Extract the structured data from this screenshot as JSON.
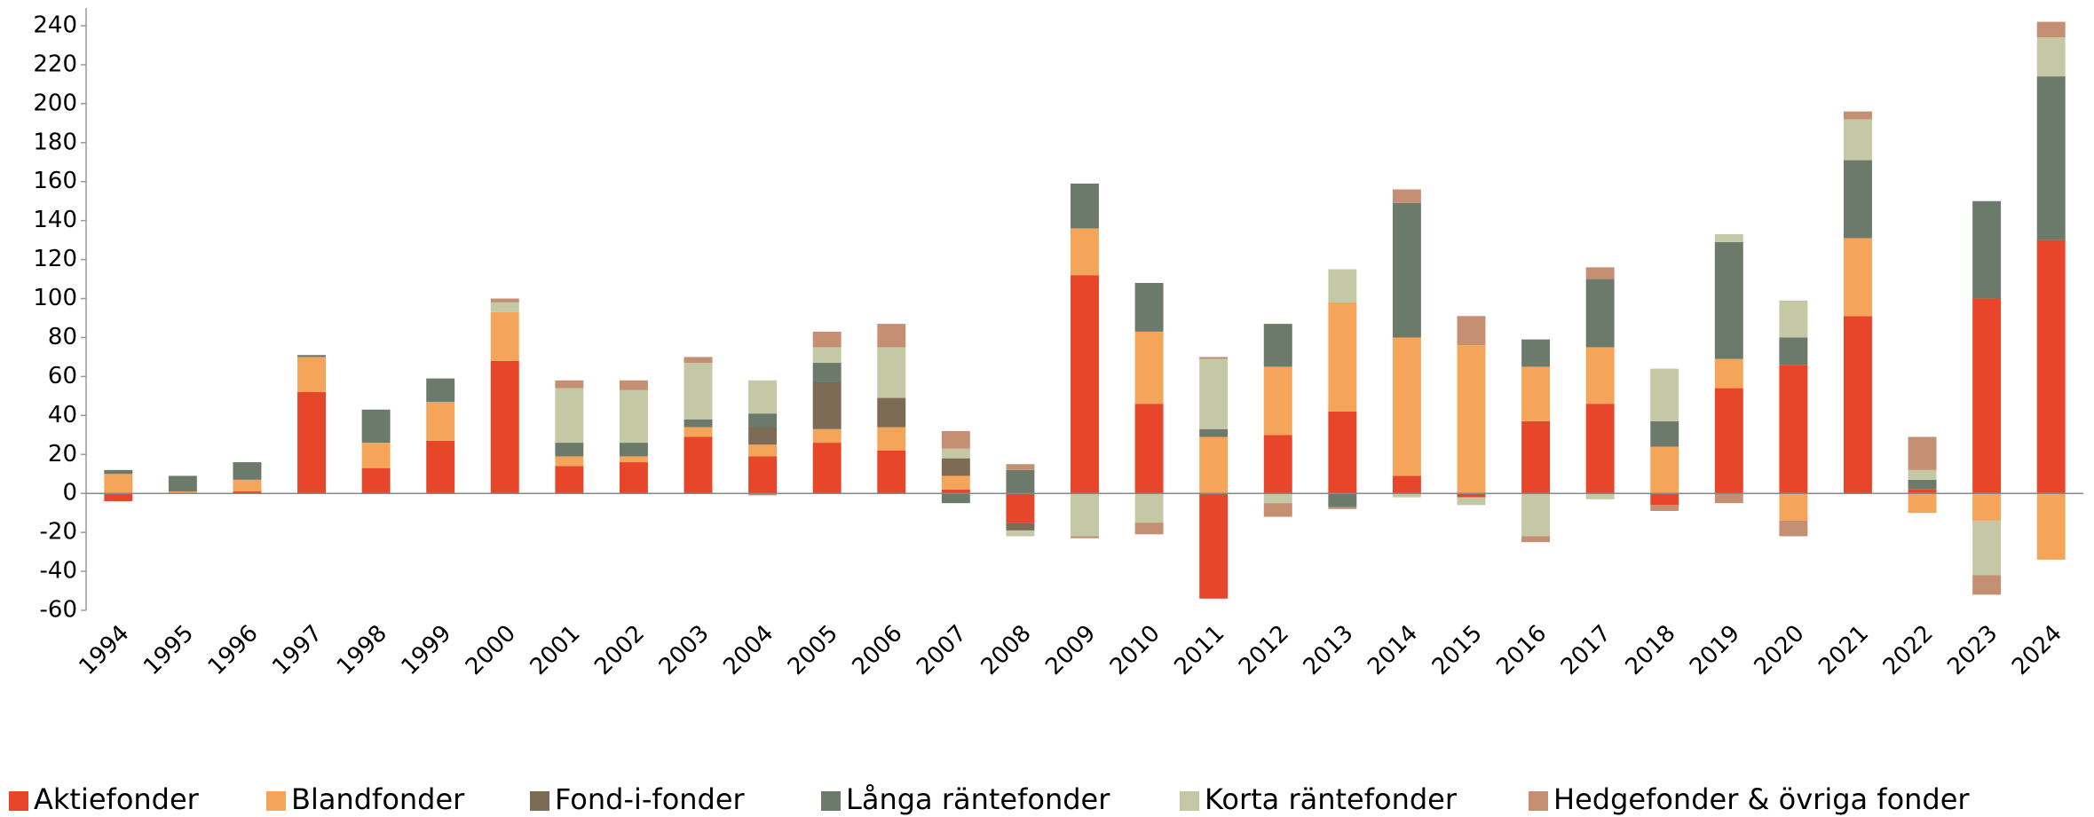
{
  "chart_data": {
    "type": "stacked_bar",
    "categories": [
      "1994",
      "1995",
      "1996",
      "1997",
      "1998",
      "1999",
      "2000",
      "2001",
      "2002",
      "2003",
      "2004",
      "2005",
      "2006",
      "2007",
      "2008",
      "2009",
      "2010",
      "2011",
      "2012",
      "2013",
      "2014",
      "2015",
      "2016",
      "2017",
      "2018",
      "2019",
      "2020",
      "2021",
      "2022",
      "2023",
      "2024"
    ],
    "series": [
      {
        "name": "Aktiefonder",
        "color": "#e8462a",
        "values": [
          -4,
          0,
          1,
          52,
          13,
          27,
          68,
          14,
          16,
          29,
          19,
          26,
          22,
          2,
          -15,
          112,
          46,
          -54,
          30,
          42,
          9,
          -2,
          37,
          46,
          -6,
          54,
          66,
          91,
          2,
          100,
          130
        ]
      },
      {
        "name": "Blandfonder",
        "color": "#f5a55a",
        "values": [
          10,
          1,
          6,
          18,
          13,
          20,
          25,
          5,
          3,
          5,
          6,
          7,
          12,
          7,
          0,
          24,
          37,
          29,
          35,
          56,
          71,
          76,
          28,
          29,
          24,
          15,
          -14,
          40,
          -10,
          -14,
          -34
        ]
      },
      {
        "name": "Fond-i-fonder",
        "color": "#7d6b55",
        "values": [
          0,
          0,
          0,
          0,
          0,
          0,
          0,
          0,
          0,
          0,
          9,
          24,
          15,
          9,
          -4,
          0,
          0,
          0,
          0,
          0,
          0,
          0,
          0,
          0,
          0,
          0,
          0,
          0,
          0,
          0,
          0
        ]
      },
      {
        "name": "Långa räntefonder",
        "color": "#6b7a6b",
        "values": [
          2,
          8,
          9,
          1,
          17,
          12,
          0,
          7,
          7,
          4,
          7,
          10,
          0,
          -5,
          12,
          23,
          25,
          4,
          22,
          -7,
          69,
          0,
          14,
          35,
          13,
          60,
          14,
          40,
          5,
          50,
          84
        ]
      },
      {
        "name": "Korta räntefonder",
        "color": "#c5c8a5",
        "values": [
          0,
          0,
          0,
          0,
          0,
          0,
          5,
          28,
          27,
          29,
          17,
          8,
          26,
          5,
          -3,
          -22,
          -15,
          36,
          -5,
          17,
          -2,
          -4,
          -22,
          -3,
          27,
          4,
          19,
          21,
          5,
          -28,
          20
        ]
      },
      {
        "name": "Hedgefonder & övriga fonder",
        "color": "#c48f73",
        "values": [
          0,
          0,
          0,
          0,
          0,
          0,
          2,
          4,
          5,
          3,
          -1,
          8,
          12,
          9,
          3,
          -1,
          -6,
          1,
          -7,
          -1,
          7,
          15,
          -3,
          6,
          -3,
          -5,
          -8,
          4,
          17,
          -10,
          8
        ]
      }
    ],
    "ylim": [
      -60,
      240
    ],
    "yticks": [
      -60,
      -40,
      -20,
      0,
      20,
      40,
      60,
      80,
      100,
      120,
      140,
      160,
      180,
      200,
      220,
      240
    ],
    "grid": false,
    "legend": "bottom"
  }
}
